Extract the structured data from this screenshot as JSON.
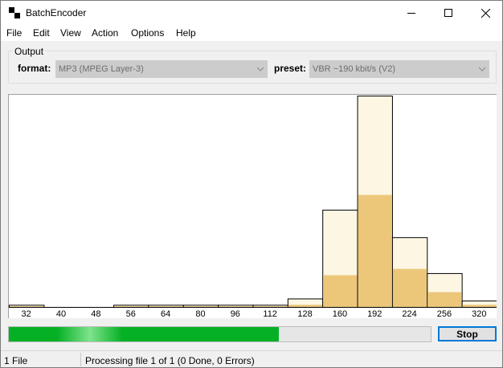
{
  "window": {
    "title": "BatchEncoder"
  },
  "menu": [
    "File",
    "Edit",
    "View",
    "Action",
    "Options",
    "Help"
  ],
  "output": {
    "group_label": "Output",
    "format_label": "format:",
    "format_value": "MP3 (MPEG Layer-3)",
    "preset_label": "preset:",
    "preset_value": "VBR ~190 kbit/s (V2)"
  },
  "chart_data": {
    "type": "bar",
    "categories": [
      "32",
      "40",
      "48",
      "56",
      "64",
      "80",
      "96",
      "112",
      "128",
      "160",
      "192",
      "224",
      "256",
      "320"
    ],
    "series": [
      {
        "values": [
          1,
          0,
          0,
          1,
          1,
          1,
          1,
          1,
          4,
          46,
          100,
          33,
          16,
          3
        ]
      },
      {
        "values": [
          0.3,
          0,
          0,
          0.3,
          0.3,
          0.3,
          0.3,
          0.3,
          1,
          15,
          53,
          18,
          7,
          1
        ]
      }
    ],
    "ylim": [
      0,
      100
    ],
    "colors": {
      "outline": "#000000",
      "light": "#fdf6e3",
      "dark": "#ecc77a"
    }
  },
  "progress": {
    "value": 0.64
  },
  "buttons": {
    "stop": "Stop"
  },
  "status": {
    "files": "1 File",
    "message": "Processing file 1 of 1 (0 Done, 0 Errors)"
  }
}
